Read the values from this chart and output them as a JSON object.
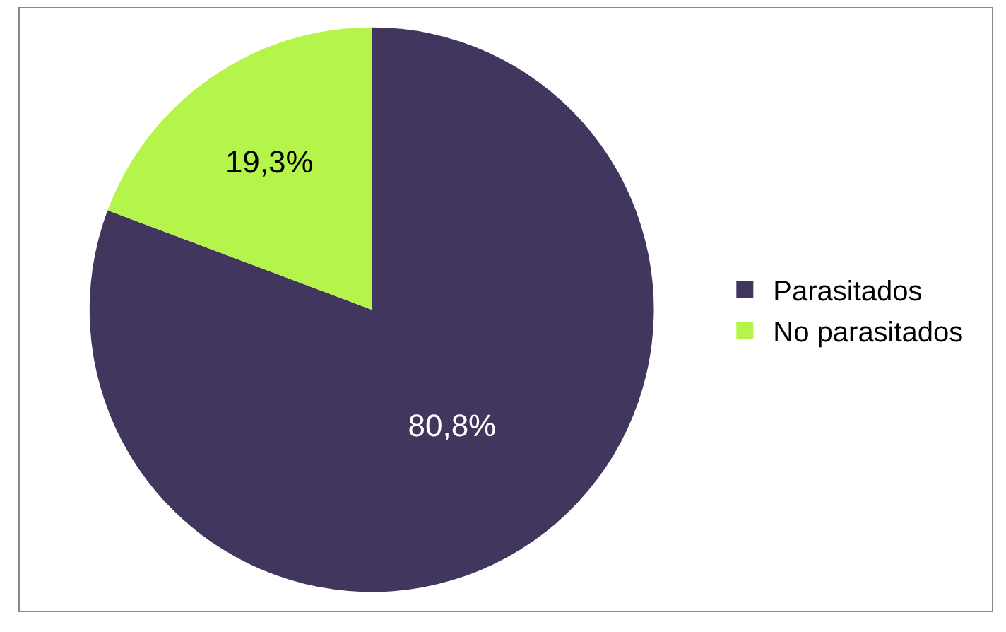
{
  "chart_data": {
    "type": "pie",
    "categories": [
      "Parasitados",
      "No parasitados"
    ],
    "values": [
      80.8,
      19.3
    ],
    "colors": [
      "#40365e",
      "#b5f44a"
    ],
    "value_labels": [
      "80,8%",
      "19,3%"
    ],
    "legend": "right"
  }
}
